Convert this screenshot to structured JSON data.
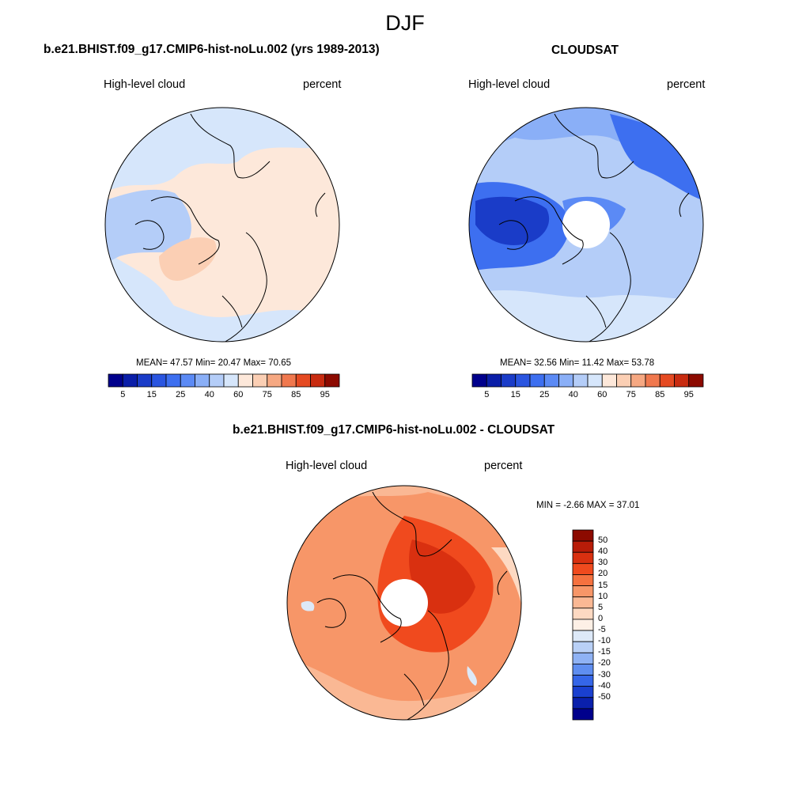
{
  "figure": {
    "suptitle": "DJF"
  },
  "chart_data": [
    {
      "type": "heatmap",
      "projection": "north-polar-stereographic",
      "title": "b.e21.BHIST.f09_g17.CMIP6-hist-noLu.002 (yrs 1989-2013)",
      "variable_label": "High-level cloud",
      "units_label": "percent",
      "stats": {
        "mean": "47.57",
        "min": "20.47",
        "max": "70.65"
      },
      "stats_text": {
        "mean_label": "MEAN=",
        "min_label": "Min=",
        "max_label": "Max="
      },
      "colorbar": {
        "orientation": "horizontal",
        "levels": [
          5,
          10,
          15,
          20,
          25,
          30,
          40,
          50,
          60,
          70,
          75,
          80,
          85,
          90,
          95
        ],
        "tick_labels": [
          "5",
          "15",
          "25",
          "40",
          "60",
          "75",
          "85",
          "95"
        ],
        "colors": [
          "#00008c",
          "#0a1ea8",
          "#1a3cc8",
          "#2a55e0",
          "#3d6ff0",
          "#5b8af5",
          "#8aaff7",
          "#b4cdf8",
          "#d6e6fb",
          "#fde8da",
          "#fbcfb4",
          "#f6a882",
          "#f0784e",
          "#e54a22",
          "#c82b10",
          "#8c0a00"
        ]
      }
    },
    {
      "type": "heatmap",
      "projection": "north-polar-stereographic",
      "title": "CLOUDSAT",
      "variable_label": "High-level cloud",
      "units_label": "percent",
      "stats": {
        "mean": "32.56",
        "min": "11.42",
        "max": "53.78"
      },
      "stats_text": {
        "mean_label": "MEAN=",
        "min_label": "Min=",
        "max_label": "Max="
      },
      "colorbar": {
        "orientation": "horizontal",
        "levels": [
          5,
          10,
          15,
          20,
          25,
          30,
          40,
          50,
          60,
          70,
          75,
          80,
          85,
          90,
          95
        ],
        "tick_labels": [
          "5",
          "15",
          "25",
          "40",
          "60",
          "75",
          "85",
          "95"
        ],
        "colors": [
          "#00008c",
          "#0a1ea8",
          "#1a3cc8",
          "#2a55e0",
          "#3d6ff0",
          "#5b8af5",
          "#8aaff7",
          "#b4cdf8",
          "#d6e6fb",
          "#fde8da",
          "#fbcfb4",
          "#f6a882",
          "#f0784e",
          "#e54a22",
          "#c82b10",
          "#8c0a00"
        ]
      }
    },
    {
      "type": "heatmap",
      "projection": "north-polar-stereographic",
      "title": "b.e21.BHIST.f09_g17.CMIP6-hist-noLu.002 - CLOUDSAT",
      "variable_label": "High-level cloud",
      "units_label": "percent",
      "stats": {
        "min": "-2.66",
        "max": "37.01"
      },
      "stats_text": {
        "min_label": "MIN =",
        "max_label": "MAX ="
      },
      "colorbar": {
        "orientation": "vertical",
        "tick_labels": [
          "50",
          "40",
          "30",
          "20",
          "15",
          "10",
          "5",
          "0",
          "-5",
          "-10",
          "-15",
          "-20",
          "-30",
          "-40",
          "-50"
        ],
        "colors": [
          "#8c0a00",
          "#b81c08",
          "#d93010",
          "#f04a1e",
          "#f5713f",
          "#f79668",
          "#fab894",
          "#fdd9c2",
          "#fdf0e6",
          "#dde9f8",
          "#b9d0f6",
          "#8fb2f4",
          "#5f8ef0",
          "#3566e8",
          "#1a40d0",
          "#0a20ac",
          "#00008c"
        ]
      }
    }
  ]
}
